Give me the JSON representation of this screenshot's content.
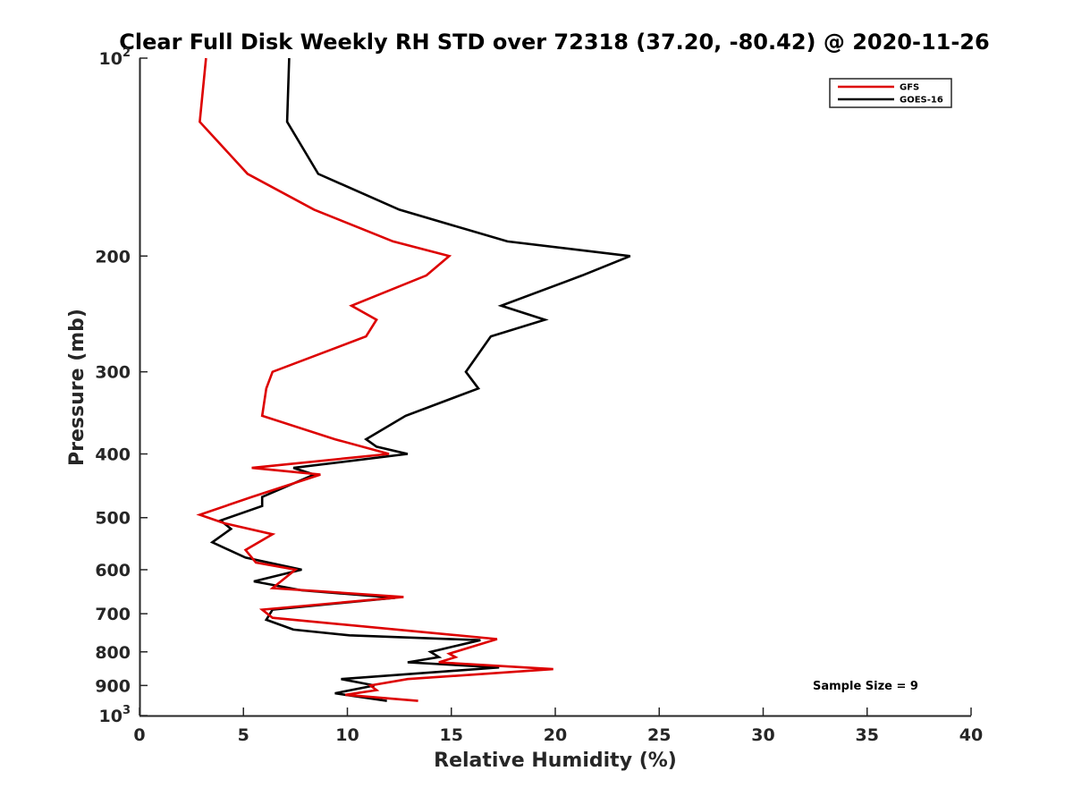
{
  "chart_data": {
    "type": "line",
    "title": "Clear Full Disk Weekly RH STD over 72318 (37.20, -80.42) @ 2020-11-26",
    "xlabel": "Relative Humidity (%)",
    "ylabel": "Pressure (mb)",
    "xlim": [
      0,
      40
    ],
    "ylim": [
      100,
      1000
    ],
    "yscale": "log",
    "y_reversed": true,
    "grid": false,
    "x_ticks": [
      "0",
      "5",
      "10",
      "15",
      "20",
      "25",
      "30",
      "35",
      "40"
    ],
    "y_ticks": [
      {
        "value": 100,
        "label": "10",
        "sup": "2"
      },
      {
        "value": 200,
        "label": "200",
        "sup": ""
      },
      {
        "value": 300,
        "label": "300",
        "sup": ""
      },
      {
        "value": 400,
        "label": "400",
        "sup": ""
      },
      {
        "value": 500,
        "label": "500",
        "sup": ""
      },
      {
        "value": 600,
        "label": "600",
        "sup": ""
      },
      {
        "value": 700,
        "label": "700",
        "sup": ""
      },
      {
        "value": 800,
        "label": "800",
        "sup": ""
      },
      {
        "value": 900,
        "label": "900",
        "sup": ""
      },
      {
        "value": 1000,
        "label": "10",
        "sup": "3"
      }
    ],
    "legend_position": "top-right",
    "annotation": "Sample Size = 9",
    "series": [
      {
        "name": "GFS",
        "color": "#dd0000",
        "points": [
          [
            3.2,
            100
          ],
          [
            2.9,
            125
          ],
          [
            5.2,
            150
          ],
          [
            8.4,
            170
          ],
          [
            12.2,
            190
          ],
          [
            14.9,
            200
          ],
          [
            13.8,
            214
          ],
          [
            10.2,
            238
          ],
          [
            11.4,
            250
          ],
          [
            10.9,
            265
          ],
          [
            6.4,
            300
          ],
          [
            6.1,
            318
          ],
          [
            5.9,
            350
          ],
          [
            9.4,
            380
          ],
          [
            12.0,
            400
          ],
          [
            5.4,
            420
          ],
          [
            8.7,
            430
          ],
          [
            5.4,
            465
          ],
          [
            2.9,
            495
          ],
          [
            4.1,
            510
          ],
          [
            6.4,
            530
          ],
          [
            5.1,
            560
          ],
          [
            5.6,
            585
          ],
          [
            7.5,
            600
          ],
          [
            6.4,
            640
          ],
          [
            12.7,
            660
          ],
          [
            5.9,
            690
          ],
          [
            6.4,
            710
          ],
          [
            17.2,
            765
          ],
          [
            14.9,
            805
          ],
          [
            15.2,
            815
          ],
          [
            14.4,
            830
          ],
          [
            19.9,
            850
          ],
          [
            12.9,
            880
          ],
          [
            11.1,
            900
          ],
          [
            11.4,
            915
          ],
          [
            9.9,
            930
          ],
          [
            13.4,
            950
          ]
        ]
      },
      {
        "name": "GOES-16",
        "color": "#000000",
        "points": [
          [
            7.2,
            100
          ],
          [
            7.1,
            125
          ],
          [
            8.6,
            150
          ],
          [
            12.5,
            170
          ],
          [
            17.7,
            190
          ],
          [
            23.6,
            200
          ],
          [
            21.3,
            214
          ],
          [
            17.4,
            238
          ],
          [
            19.5,
            250
          ],
          [
            16.9,
            265
          ],
          [
            15.7,
            300
          ],
          [
            16.3,
            318
          ],
          [
            12.8,
            350
          ],
          [
            10.9,
            380
          ],
          [
            11.4,
            390
          ],
          [
            12.9,
            400
          ],
          [
            7.4,
            420
          ],
          [
            8.4,
            430
          ],
          [
            5.9,
            465
          ],
          [
            5.9,
            480
          ],
          [
            3.9,
            505
          ],
          [
            4.4,
            520
          ],
          [
            3.5,
            545
          ],
          [
            5.1,
            575
          ],
          [
            7.8,
            600
          ],
          [
            5.5,
            625
          ],
          [
            7.8,
            645
          ],
          [
            12.3,
            662
          ],
          [
            6.4,
            690
          ],
          [
            6.1,
            715
          ],
          [
            7.4,
            740
          ],
          [
            10.1,
            755
          ],
          [
            16.4,
            768
          ],
          [
            14.0,
            800
          ],
          [
            14.4,
            815
          ],
          [
            12.9,
            830
          ],
          [
            17.3,
            845
          ],
          [
            9.7,
            880
          ],
          [
            11.3,
            900
          ],
          [
            9.4,
            925
          ],
          [
            11.9,
            950
          ]
        ]
      }
    ]
  }
}
